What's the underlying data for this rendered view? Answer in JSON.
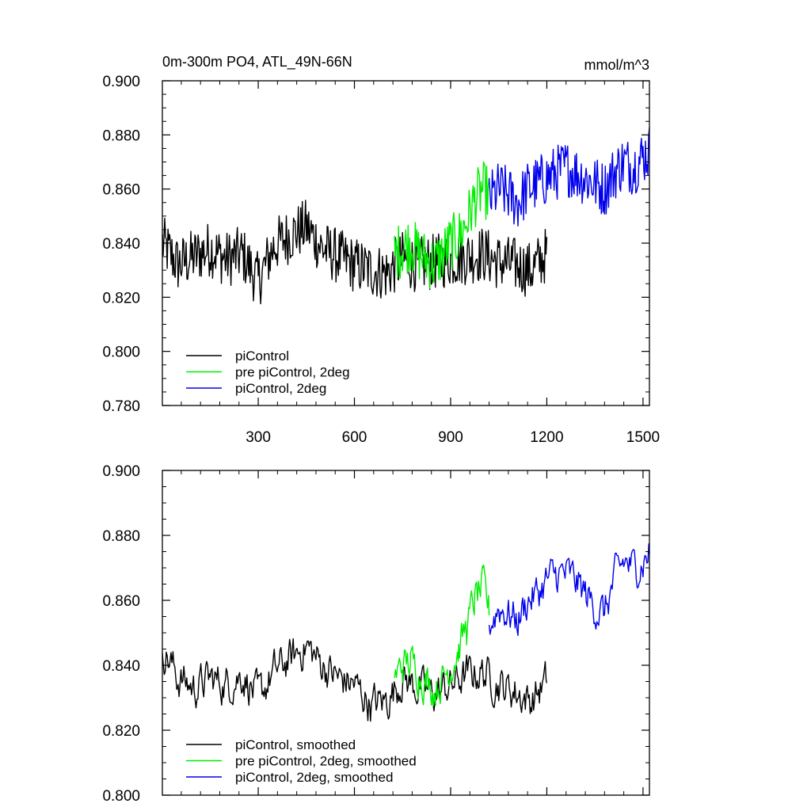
{
  "chart_data": [
    {
      "type": "line",
      "title": "0m-300m PO4, ATL_49N-66N",
      "units": "mmol/m^3",
      "xlim": [
        1,
        1520
      ],
      "ylim": [
        0.78,
        0.9
      ],
      "x_ticks": [
        300,
        600,
        900,
        1200,
        1500
      ],
      "x_tick_labels": [
        "300",
        "600",
        "900",
        "1200",
        "1500"
      ],
      "y_ticks": [
        0.78,
        0.8,
        0.82,
        0.84,
        0.86,
        0.88,
        0.9
      ],
      "y_tick_labels": [
        "0.780",
        "0.800",
        "0.820",
        "0.840",
        "0.860",
        "0.880",
        "0.900"
      ],
      "legend_position": "bottom-left",
      "series": [
        {
          "name": "piControl",
          "color": "#000000",
          "x": [
            1,
            50,
            100,
            150,
            200,
            250,
            300,
            350,
            400,
            450,
            500,
            550,
            600,
            650,
            700,
            750,
            800,
            850,
            900,
            950,
            1000,
            1050,
            1100,
            1150,
            1200
          ],
          "values": [
            0.84,
            0.832,
            0.835,
            0.838,
            0.834,
            0.836,
            0.826,
            0.839,
            0.843,
            0.846,
            0.838,
            0.835,
            0.832,
            0.83,
            0.829,
            0.834,
            0.832,
            0.833,
            0.834,
            0.835,
            0.836,
            0.833,
            0.832,
            0.83,
            0.836
          ]
        },
        {
          "name": "pre piControl, 2deg",
          "color": "#00ee00",
          "x": [
            725,
            750,
            775,
            800,
            825,
            850,
            875,
            900,
            925,
            950,
            975,
            1000,
            1020
          ],
          "values": [
            0.836,
            0.838,
            0.84,
            0.836,
            0.834,
            0.832,
            0.836,
            0.84,
            0.842,
            0.848,
            0.856,
            0.86,
            0.858
          ]
        },
        {
          "name": "piControl, 2deg",
          "color": "#0000ee",
          "x": [
            1020,
            1050,
            1080,
            1110,
            1140,
            1170,
            1200,
            1230,
            1260,
            1290,
            1320,
            1350,
            1380,
            1410,
            1440,
            1470,
            1500,
            1520
          ],
          "values": [
            0.856,
            0.86,
            0.858,
            0.855,
            0.86,
            0.862,
            0.864,
            0.866,
            0.868,
            0.866,
            0.864,
            0.862,
            0.86,
            0.866,
            0.87,
            0.868,
            0.872,
            0.874
          ]
        }
      ]
    },
    {
      "type": "line",
      "xlim": [
        1,
        1520
      ],
      "ylim": [
        0.8,
        0.9
      ],
      "x_ticks": [
        300,
        600,
        900,
        1200,
        1500
      ],
      "y_ticks": [
        0.8,
        0.82,
        0.84,
        0.86,
        0.88,
        0.9
      ],
      "y_tick_labels": [
        "0.800",
        "0.820",
        "0.840",
        "0.860",
        "0.880",
        "0.900"
      ],
      "legend_position": "bottom-left",
      "series": [
        {
          "name": "piControl, smoothed",
          "color": "#000000",
          "x": [
            1,
            50,
            100,
            150,
            200,
            250,
            300,
            350,
            400,
            450,
            500,
            550,
            600,
            650,
            700,
            750,
            800,
            850,
            900,
            950,
            1000,
            1050,
            1100,
            1150,
            1200
          ],
          "values": [
            0.846,
            0.836,
            0.833,
            0.836,
            0.834,
            0.837,
            0.83,
            0.838,
            0.842,
            0.846,
            0.84,
            0.836,
            0.834,
            0.828,
            0.829,
            0.836,
            0.833,
            0.831,
            0.834,
            0.837,
            0.838,
            0.834,
            0.832,
            0.829,
            0.835
          ]
        },
        {
          "name": "pre piControl, 2deg, smoothed",
          "color": "#00ee00",
          "x": [
            725,
            750,
            775,
            800,
            825,
            850,
            875,
            900,
            925,
            950,
            975,
            1000,
            1020
          ],
          "values": [
            0.836,
            0.84,
            0.841,
            0.838,
            0.835,
            0.833,
            0.836,
            0.84,
            0.845,
            0.852,
            0.86,
            0.864,
            0.857
          ]
        },
        {
          "name": "piControl, 2deg, smoothed",
          "color": "#0000ee",
          "x": [
            1020,
            1050,
            1080,
            1110,
            1140,
            1170,
            1200,
            1230,
            1260,
            1290,
            1320,
            1350,
            1380,
            1410,
            1440,
            1470,
            1500,
            1520
          ],
          "values": [
            0.852,
            0.858,
            0.856,
            0.854,
            0.86,
            0.862,
            0.866,
            0.868,
            0.868,
            0.866,
            0.862,
            0.858,
            0.856,
            0.866,
            0.872,
            0.87,
            0.872,
            0.875
          ]
        }
      ]
    }
  ]
}
